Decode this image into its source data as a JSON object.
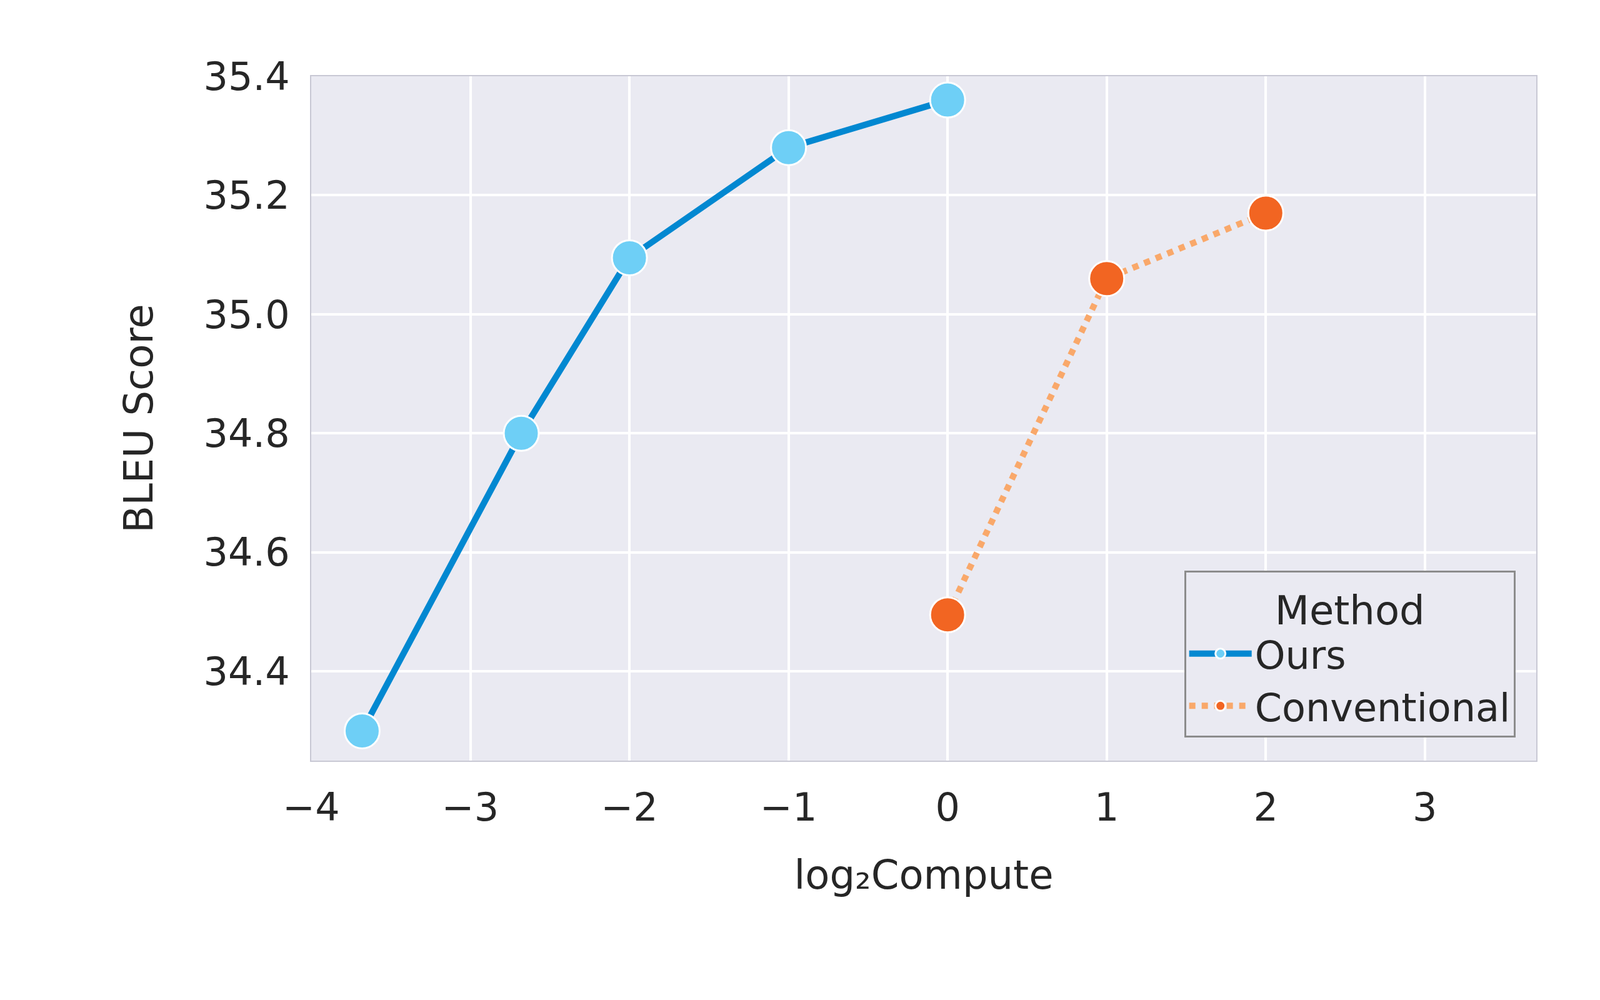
{
  "chart_data": {
    "type": "line",
    "x_label": "log₂Compute",
    "y_label": "BLEU Score",
    "legend_title": "Method",
    "series": [
      {
        "name": "Ours",
        "color": "#0288d1",
        "line_style": "solid",
        "marker": "circle",
        "x": [
          -3.68,
          -2.68,
          -2.0,
          -1.0,
          0.0
        ],
        "values": [
          34.3,
          34.8,
          35.095,
          35.28,
          35.36
        ]
      },
      {
        "name": "Conventional",
        "color": "#f9a86a",
        "line_style": "dotted",
        "marker": "circle",
        "x": [
          0.0,
          1.0,
          2.0
        ],
        "values": [
          34.495,
          35.06,
          35.17
        ]
      }
    ],
    "xlim": [
      -4.0,
      3.7
    ],
    "xticks": [
      {
        "value": -4,
        "label": "−4"
      },
      {
        "value": -3,
        "label": "−3"
      },
      {
        "value": -2,
        "label": "−2"
      },
      {
        "value": -1,
        "label": "−1"
      },
      0,
      1,
      2,
      3
    ],
    "ylim": [
      34.25,
      35.4
    ],
    "yticks": [
      34.4,
      34.6,
      34.8,
      {
        "value": 35.0,
        "label": "35.0"
      },
      35.2,
      35.4
    ],
    "grid": true,
    "legend": "lower right"
  }
}
